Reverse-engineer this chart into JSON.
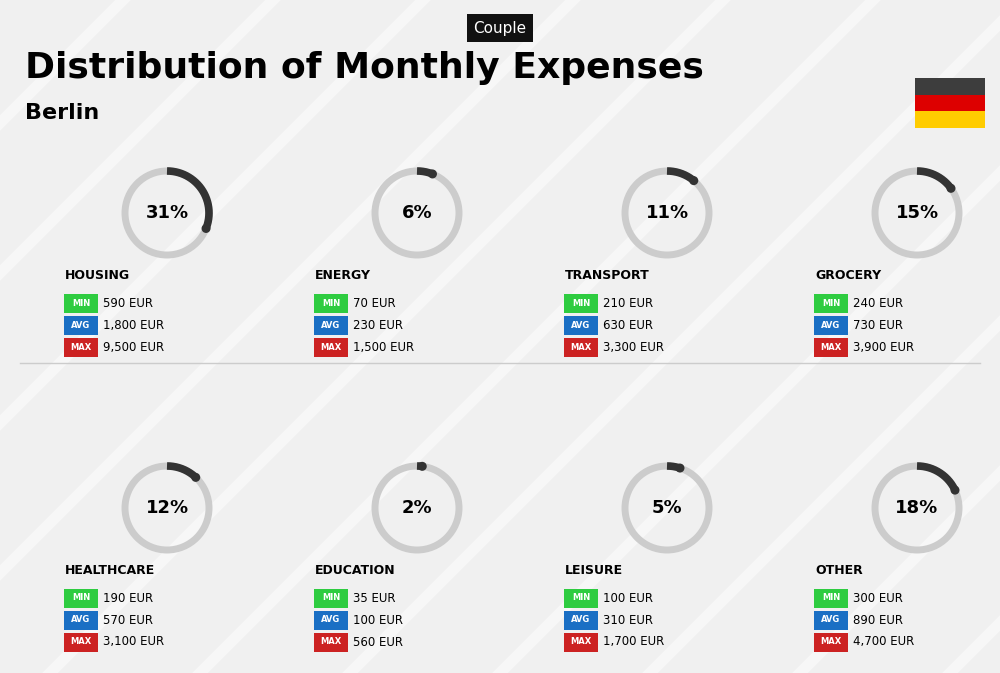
{
  "title": "Distribution of Monthly Expenses",
  "subtitle": "Berlin",
  "tag": "Couple",
  "bg_color": "#f0f0f0",
  "categories": [
    {
      "name": "HOUSING",
      "pct": 31,
      "min": "590 EUR",
      "avg": "1,800 EUR",
      "max": "9,500 EUR",
      "row": 0,
      "col": 0
    },
    {
      "name": "ENERGY",
      "pct": 6,
      "min": "70 EUR",
      "avg": "230 EUR",
      "max": "1,500 EUR",
      "row": 0,
      "col": 1
    },
    {
      "name": "TRANSPORT",
      "pct": 11,
      "min": "210 EUR",
      "avg": "630 EUR",
      "max": "3,300 EUR",
      "row": 0,
      "col": 2
    },
    {
      "name": "GROCERY",
      "pct": 15,
      "min": "240 EUR",
      "avg": "730 EUR",
      "max": "3,900 EUR",
      "row": 0,
      "col": 3
    },
    {
      "name": "HEALTHCARE",
      "pct": 12,
      "min": "190 EUR",
      "avg": "570 EUR",
      "max": "3,100 EUR",
      "row": 1,
      "col": 0
    },
    {
      "name": "EDUCATION",
      "pct": 2,
      "min": "35 EUR",
      "avg": "100 EUR",
      "max": "560 EUR",
      "row": 1,
      "col": 1
    },
    {
      "name": "LEISURE",
      "pct": 5,
      "min": "100 EUR",
      "avg": "310 EUR",
      "max": "1,700 EUR",
      "row": 1,
      "col": 2
    },
    {
      "name": "OTHER",
      "pct": 18,
      "min": "300 EUR",
      "avg": "890 EUR",
      "max": "4,700 EUR",
      "row": 1,
      "col": 3
    }
  ],
  "min_color": "#2ecc40",
  "avg_color": "#1a6fc4",
  "max_color": "#cc2222",
  "arc_color": "#333333",
  "arc_bg_color": "#cccccc",
  "label_color": "#111111",
  "germany_colors": [
    "#3d3d3d",
    "#dd0000",
    "#ffcc00"
  ]
}
